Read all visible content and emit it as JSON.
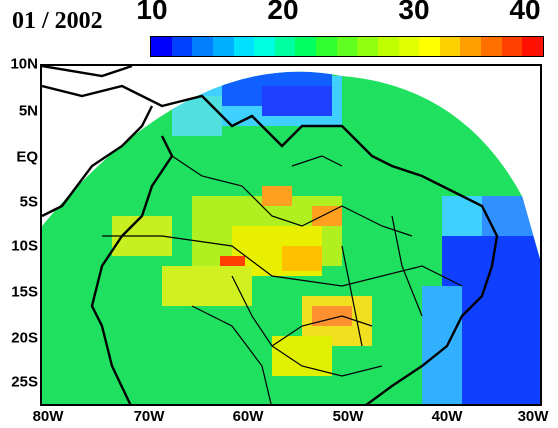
{
  "map": {
    "date": "01 / 2002",
    "colorbar": {
      "ticks": [
        "10",
        "20",
        "30",
        "40"
      ],
      "colors": [
        "#0000ff",
        "#0040ff",
        "#0080ff",
        "#00b0ff",
        "#00e0ff",
        "#00ffe0",
        "#00ffa0",
        "#00ff60",
        "#30ff30",
        "#60ff20",
        "#90ff10",
        "#c0ff00",
        "#e0ff00",
        "#ffff00",
        "#ffd000",
        "#ffa000",
        "#ff7000",
        "#ff4000",
        "#ff1000"
      ]
    },
    "lat_labels": [
      "10N",
      "5N",
      "EQ",
      "5S",
      "10S",
      "15S",
      "20S",
      "25S"
    ],
    "lon_labels": [
      "80W",
      "70W",
      "60W",
      "50W",
      "40W",
      "30W"
    ],
    "field_colors": {
      "background": "#20e060",
      "low": "#1040ff",
      "mid_low": "#30c0ff",
      "high": "#e8f000",
      "peak": "#ff4000"
    }
  }
}
